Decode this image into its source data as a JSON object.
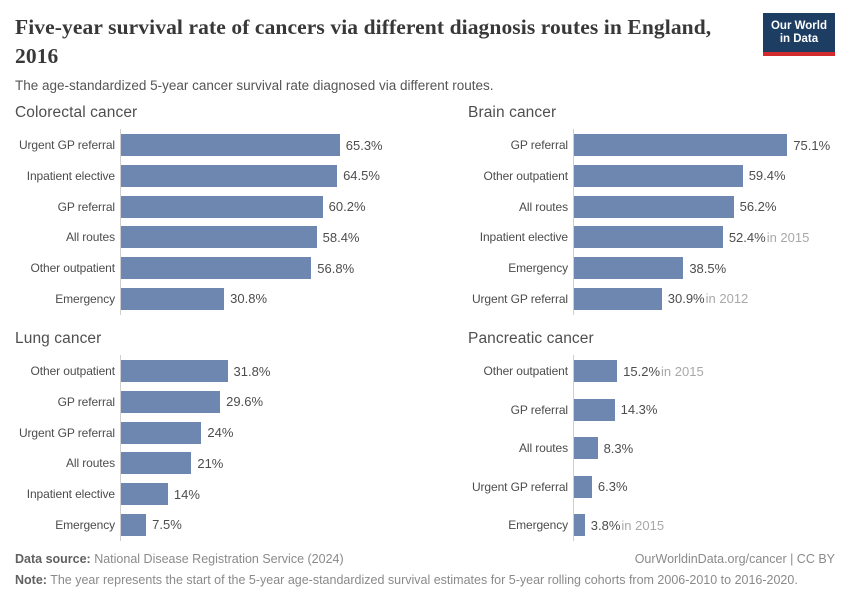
{
  "header": {
    "title": "Five-year survival rate of cancers via different diagnosis routes in England, 2016",
    "subtitle": "The age-standardized 5-year cancer survival rate diagnosed via different routes.",
    "logo": {
      "line1": "Our World",
      "line2": "in Data"
    }
  },
  "colors": {
    "bar": "#6d87b0",
    "logo_background": "#1d3d63",
    "logo_stripe": "#d42b2f",
    "year_note_text": "#a8a8a8"
  },
  "chart_data": [
    {
      "type": "bar",
      "orientation": "horizontal",
      "title": "Colorectal cancer",
      "unit": "%",
      "xlim": [
        0,
        100
      ],
      "grid": false,
      "rows": [
        {
          "label": "Urgent GP referral",
          "value": 65.3,
          "display": "65.3%",
          "year_note": ""
        },
        {
          "label": "Inpatient elective",
          "value": 64.5,
          "display": "64.5%",
          "year_note": ""
        },
        {
          "label": "GP referral",
          "value": 60.2,
          "display": "60.2%",
          "year_note": ""
        },
        {
          "label": "All routes",
          "value": 58.4,
          "display": "58.4%",
          "year_note": ""
        },
        {
          "label": "Other outpatient",
          "value": 56.8,
          "display": "56.8%",
          "year_note": ""
        },
        {
          "label": "Emergency",
          "value": 30.8,
          "display": "30.8%",
          "year_note": ""
        }
      ]
    },
    {
      "type": "bar",
      "orientation": "horizontal",
      "title": "Brain cancer",
      "unit": "%",
      "xlim": [
        0,
        100
      ],
      "grid": false,
      "rows": [
        {
          "label": "GP referral",
          "value": 75.1,
          "display": "75.1%",
          "year_note": ""
        },
        {
          "label": "Other outpatient",
          "value": 59.4,
          "display": "59.4%",
          "year_note": ""
        },
        {
          "label": "All routes",
          "value": 56.2,
          "display": "56.2%",
          "year_note": ""
        },
        {
          "label": "Inpatient elective",
          "value": 52.4,
          "display": "52.4%",
          "year_note": "in 2015"
        },
        {
          "label": "Emergency",
          "value": 38.5,
          "display": "38.5%",
          "year_note": ""
        },
        {
          "label": "Urgent GP referral",
          "value": 30.9,
          "display": "30.9%",
          "year_note": "in 2012"
        }
      ]
    },
    {
      "type": "bar",
      "orientation": "horizontal",
      "title": "Lung cancer",
      "unit": "%",
      "xlim": [
        0,
        100
      ],
      "grid": false,
      "rows": [
        {
          "label": "Other outpatient",
          "value": 31.8,
          "display": "31.8%",
          "year_note": ""
        },
        {
          "label": "GP referral",
          "value": 29.6,
          "display": "29.6%",
          "year_note": ""
        },
        {
          "label": "Urgent GP referral",
          "value": 24,
          "display": "24%",
          "year_note": ""
        },
        {
          "label": "All routes",
          "value": 21,
          "display": "21%",
          "year_note": ""
        },
        {
          "label": "Inpatient elective",
          "value": 14,
          "display": "14%",
          "year_note": ""
        },
        {
          "label": "Emergency",
          "value": 7.5,
          "display": "7.5%",
          "year_note": ""
        }
      ]
    },
    {
      "type": "bar",
      "orientation": "horizontal",
      "title": "Pancreatic cancer",
      "unit": "%",
      "xlim": [
        0,
        100
      ],
      "grid": false,
      "rows": [
        {
          "label": "Other outpatient",
          "value": 15.2,
          "display": "15.2%",
          "year_note": "in 2015"
        },
        {
          "label": "GP referral",
          "value": 14.3,
          "display": "14.3%",
          "year_note": ""
        },
        {
          "label": "All routes",
          "value": 8.3,
          "display": "8.3%",
          "year_note": ""
        },
        {
          "label": "Urgent GP referral",
          "value": 6.3,
          "display": "6.3%",
          "year_note": ""
        },
        {
          "label": "Emergency",
          "value": 3.8,
          "display": "3.8%",
          "year_note": "in 2015"
        }
      ]
    }
  ],
  "footer": {
    "source_label": "Data source:",
    "source_value": " National Disease Registration Service (2024)",
    "link_text": "OurWorldinData.org/cancer | CC BY",
    "note_label": "Note:",
    "note_value": " The year represents the start of the 5-year age-standardized survival estimates for 5-year rolling cohorts from 2006-2010 to 2016-2020."
  }
}
